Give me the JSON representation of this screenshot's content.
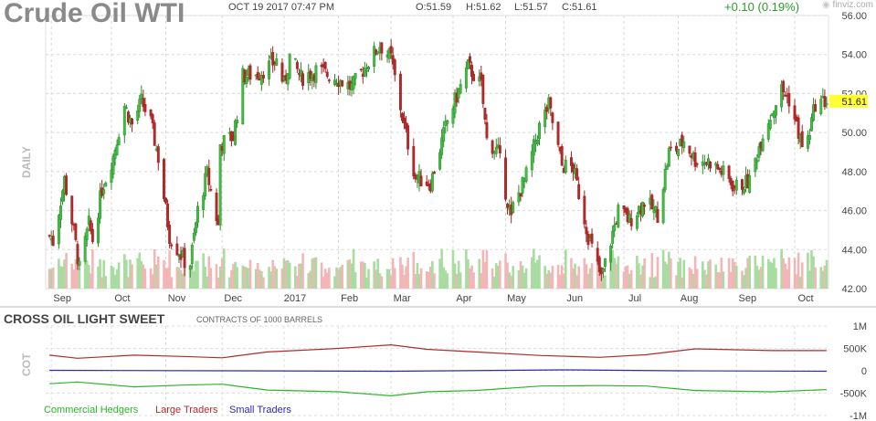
{
  "header": {
    "title": "Crude Oil WTI",
    "datetime": "OCT 19 2017 07:47 PM",
    "open": "O:51.59",
    "high": "H:51.62",
    "low": "L:51.57",
    "close": "C:51.61",
    "change": "+0.10 (0.19%)",
    "brand": "finviz.com",
    "brand_icon": "finviz-logo-icon"
  },
  "chart_data": [
    {
      "type": "candlestick",
      "panel": "price",
      "period_label": "DAILY",
      "x_labels": [
        "Sep",
        "Oct",
        "Nov",
        "Dec",
        "2017",
        "Feb",
        "Mar",
        "Apr",
        "May",
        "Jun",
        "Jul",
        "Aug",
        "Sep",
        "Oct"
      ],
      "y_ticks": [
        "56.00",
        "54.00",
        "52.00",
        "50.00",
        "48.00",
        "46.00",
        "44.00",
        "42.00"
      ],
      "ylim": [
        42,
        56
      ],
      "last_price": "51.61",
      "close_path": [
        {
          "x": "2016-08-31",
          "y": 44.7
        },
        {
          "x": "2016-09-02",
          "y": 44.4
        },
        {
          "x": "2016-09-08",
          "y": 47.6
        },
        {
          "x": "2016-09-13",
          "y": 44.9
        },
        {
          "x": "2016-09-16",
          "y": 43.0
        },
        {
          "x": "2016-09-21",
          "y": 45.3
        },
        {
          "x": "2016-09-23",
          "y": 44.5
        },
        {
          "x": "2016-09-28",
          "y": 47.1
        },
        {
          "x": "2016-10-04",
          "y": 48.8
        },
        {
          "x": "2016-10-10",
          "y": 51.4
        },
        {
          "x": "2016-10-14",
          "y": 50.4
        },
        {
          "x": "2016-10-19",
          "y": 51.6
        },
        {
          "x": "2016-10-24",
          "y": 50.5
        },
        {
          "x": "2016-10-28",
          "y": 48.7
        },
        {
          "x": "2016-11-03",
          "y": 44.7
        },
        {
          "x": "2016-11-11",
          "y": 43.4
        },
        {
          "x": "2016-11-14",
          "y": 43.3
        },
        {
          "x": "2016-11-18",
          "y": 46.0
        },
        {
          "x": "2016-11-23",
          "y": 47.9
        },
        {
          "x": "2016-11-29",
          "y": 45.2
        },
        {
          "x": "2016-11-30",
          "y": 49.4
        },
        {
          "x": "2016-12-07",
          "y": 49.8
        },
        {
          "x": "2016-12-12",
          "y": 52.9
        },
        {
          "x": "2016-12-20",
          "y": 53.0
        },
        {
          "x": "2016-12-30",
          "y": 53.7
        },
        {
          "x": "2017-01-03",
          "y": 52.4
        },
        {
          "x": "2017-01-06",
          "y": 53.9
        },
        {
          "x": "2017-01-12",
          "y": 52.8
        },
        {
          "x": "2017-01-20",
          "y": 53.2
        },
        {
          "x": "2017-01-31",
          "y": 52.8
        },
        {
          "x": "2017-02-08",
          "y": 52.3
        },
        {
          "x": "2017-02-14",
          "y": 53.2
        },
        {
          "x": "2017-02-23",
          "y": 54.5
        },
        {
          "x": "2017-03-01",
          "y": 53.8
        },
        {
          "x": "2017-03-08",
          "y": 50.3
        },
        {
          "x": "2017-03-14",
          "y": 47.7
        },
        {
          "x": "2017-03-22",
          "y": 47.4
        },
        {
          "x": "2017-03-31",
          "y": 50.6
        },
        {
          "x": "2017-04-11",
          "y": 53.4
        },
        {
          "x": "2017-04-18",
          "y": 52.4
        },
        {
          "x": "2017-04-21",
          "y": 49.6
        },
        {
          "x": "2017-04-27",
          "y": 49.0
        },
        {
          "x": "2017-05-04",
          "y": 45.5
        },
        {
          "x": "2017-05-05",
          "y": 46.2
        },
        {
          "x": "2017-05-12",
          "y": 47.8
        },
        {
          "x": "2017-05-19",
          "y": 50.3
        },
        {
          "x": "2017-05-24",
          "y": 51.4
        },
        {
          "x": "2017-05-31",
          "y": 48.3
        },
        {
          "x": "2017-06-06",
          "y": 48.2
        },
        {
          "x": "2017-06-14",
          "y": 44.7
        },
        {
          "x": "2017-06-21",
          "y": 42.5
        },
        {
          "x": "2017-06-30",
          "y": 46.0
        },
        {
          "x": "2017-07-06",
          "y": 45.5
        },
        {
          "x": "2017-07-14",
          "y": 46.5
        },
        {
          "x": "2017-07-21",
          "y": 45.8
        },
        {
          "x": "2017-07-27",
          "y": 49.0
        },
        {
          "x": "2017-08-01",
          "y": 49.2
        },
        {
          "x": "2017-08-04",
          "y": 49.6
        },
        {
          "x": "2017-08-10",
          "y": 48.6
        },
        {
          "x": "2017-08-18",
          "y": 48.5
        },
        {
          "x": "2017-08-25",
          "y": 47.9
        },
        {
          "x": "2017-08-31",
          "y": 47.2
        },
        {
          "x": "2017-09-08",
          "y": 47.5
        },
        {
          "x": "2017-09-15",
          "y": 50.0
        },
        {
          "x": "2017-09-25",
          "y": 52.2
        },
        {
          "x": "2017-09-29",
          "y": 51.7
        },
        {
          "x": "2017-10-06",
          "y": 49.3
        },
        {
          "x": "2017-10-09",
          "y": 49.6
        },
        {
          "x": "2017-10-13",
          "y": 51.5
        },
        {
          "x": "2017-10-19",
          "y": 51.61
        }
      ],
      "volume_note": "daily volume bars, green on up days, red on down days"
    },
    {
      "type": "line",
      "panel": "cot",
      "title": "CROSS OIL LIGHT SWEET",
      "subtitle": "CONTRACTS OF 1000 BARRELS",
      "side_label": "COT",
      "y_ticks": [
        "1M",
        "500K",
        "0",
        "-500K",
        "-1M"
      ],
      "ylim": [
        -1000000,
        1000000
      ],
      "series": [
        {
          "name": "Commercial Hedgers",
          "color": "#2bb52b",
          "values": [
            {
              "x": "2016-08-31",
              "y": -290000
            },
            {
              "x": "2016-09-15",
              "y": -250000
            },
            {
              "x": "2016-10-15",
              "y": -360000
            },
            {
              "x": "2016-11-10",
              "y": -320000
            },
            {
              "x": "2016-12-01",
              "y": -300000
            },
            {
              "x": "2016-12-25",
              "y": -430000
            },
            {
              "x": "2017-02-01",
              "y": -470000
            },
            {
              "x": "2017-03-01",
              "y": -560000
            },
            {
              "x": "2017-03-20",
              "y": -470000
            },
            {
              "x": "2017-04-15",
              "y": -440000
            },
            {
              "x": "2017-05-20",
              "y": -340000
            },
            {
              "x": "2017-06-20",
              "y": -330000
            },
            {
              "x": "2017-07-15",
              "y": -340000
            },
            {
              "x": "2017-08-10",
              "y": -440000
            },
            {
              "x": "2017-09-20",
              "y": -470000
            },
            {
              "x": "2017-10-19",
              "y": -420000
            }
          ]
        },
        {
          "name": "Large Traders",
          "color": "#b22a2a",
          "values": [
            {
              "x": "2016-08-31",
              "y": 350000
            },
            {
              "x": "2016-09-15",
              "y": 280000
            },
            {
              "x": "2016-10-15",
              "y": 350000
            },
            {
              "x": "2016-11-10",
              "y": 320000
            },
            {
              "x": "2016-12-01",
              "y": 290000
            },
            {
              "x": "2016-12-25",
              "y": 420000
            },
            {
              "x": "2017-02-01",
              "y": 500000
            },
            {
              "x": "2017-03-01",
              "y": 580000
            },
            {
              "x": "2017-03-20",
              "y": 480000
            },
            {
              "x": "2017-04-15",
              "y": 420000
            },
            {
              "x": "2017-05-20",
              "y": 340000
            },
            {
              "x": "2017-06-20",
              "y": 300000
            },
            {
              "x": "2017-07-15",
              "y": 360000
            },
            {
              "x": "2017-08-10",
              "y": 490000
            },
            {
              "x": "2017-09-20",
              "y": 450000
            },
            {
              "x": "2017-10-19",
              "y": 450000
            }
          ]
        },
        {
          "name": "Small Traders",
          "color": "#2a2ab2",
          "values": [
            {
              "x": "2016-08-31",
              "y": 10000
            },
            {
              "x": "2016-12-01",
              "y": 0
            },
            {
              "x": "2017-03-01",
              "y": -10000
            },
            {
              "x": "2017-06-01",
              "y": 20000
            },
            {
              "x": "2017-08-01",
              "y": 0
            },
            {
              "x": "2017-10-19",
              "y": -10000
            }
          ]
        }
      ]
    }
  ]
}
